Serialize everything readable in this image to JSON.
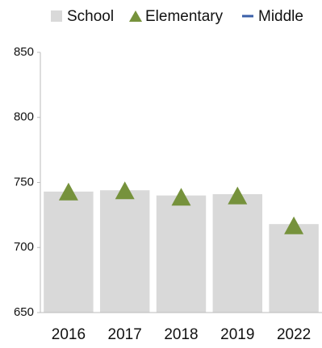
{
  "chart_data": {
    "type": "bar",
    "categories": [
      "2016",
      "2017",
      "2018",
      "2019",
      "2022"
    ],
    "series": [
      {
        "name": "School",
        "color": "#d9d9d9",
        "marker": "bar",
        "values": [
          743,
          744,
          740,
          741,
          718
        ]
      },
      {
        "name": "Elementary",
        "color": "#76923c",
        "marker": "triangle",
        "values": [
          743,
          744,
          739,
          740,
          717
        ]
      },
      {
        "name": "Middle",
        "color": "#3a5fa8",
        "marker": "line",
        "values": [
          null,
          null,
          null,
          null,
          null
        ]
      }
    ],
    "ylim": [
      650,
      850
    ],
    "yticks": [
      650,
      700,
      750,
      800,
      850
    ],
    "grid": false
  }
}
